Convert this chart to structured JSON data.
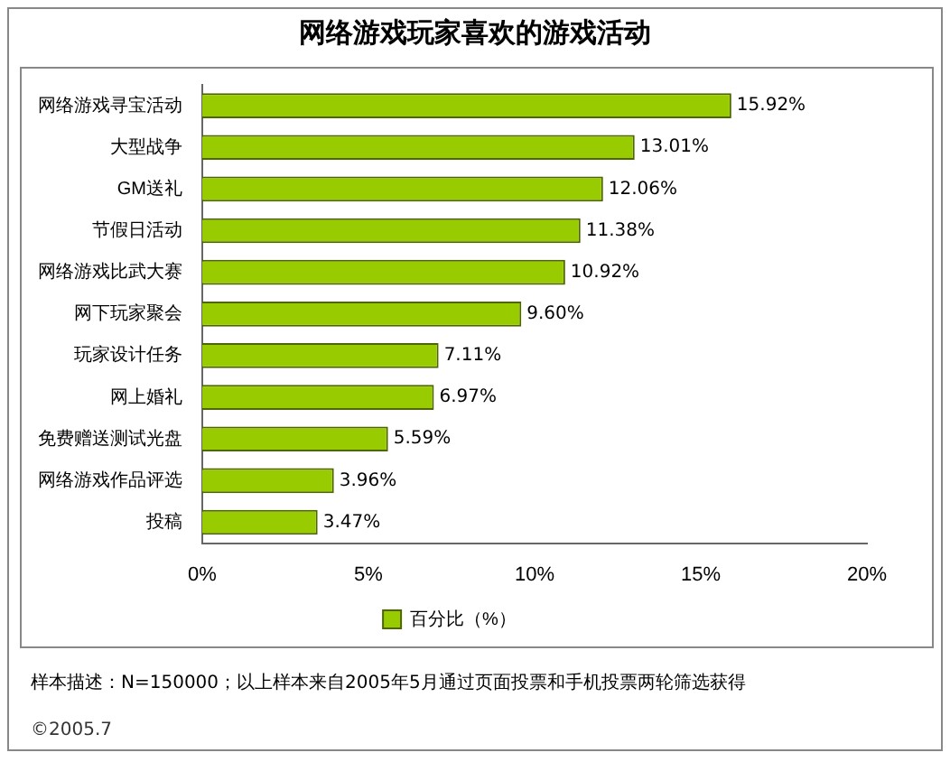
{
  "chart_data": {
    "type": "bar",
    "orientation": "horizontal",
    "title": "网络游戏玩家喜欢的游戏活动",
    "categories": [
      "网络游戏寻宝活动",
      "大型战争",
      "GM送礼",
      "节假日活动",
      "网络游戏比武大赛",
      "网下玩家聚会",
      "玩家设计任务",
      "网上婚礼",
      "免费赠送测试光盘",
      "网络游戏作品评选",
      "投稿"
    ],
    "series": [
      {
        "name": "百分比（%）",
        "color": "#99cc00",
        "values": [
          15.92,
          13.01,
          12.06,
          11.38,
          10.92,
          9.6,
          7.11,
          6.97,
          5.59,
          3.96,
          3.47
        ],
        "value_labels": [
          "15.92%",
          "13.01%",
          "12.06%",
          "11.38%",
          "10.92%",
          "9.60%",
          "7.11%",
          "6.97%",
          "5.59%",
          "3.96%",
          "3.47%"
        ]
      }
    ],
    "xlim": [
      0,
      20
    ],
    "xticks": [
      {
        "value": 0,
        "label": "0%"
      },
      {
        "value": 5,
        "label": "5%"
      },
      {
        "value": 10,
        "label": "10%"
      },
      {
        "value": 15,
        "label": "15%"
      },
      {
        "value": 20,
        "label": "20%"
      }
    ],
    "grid": false,
    "legend": "bottom",
    "annotations": [
      "样本描述：N=150000；以上样本来自2005年5月通过页面投票和手机投票两轮筛选获得",
      "©2005.7"
    ]
  }
}
